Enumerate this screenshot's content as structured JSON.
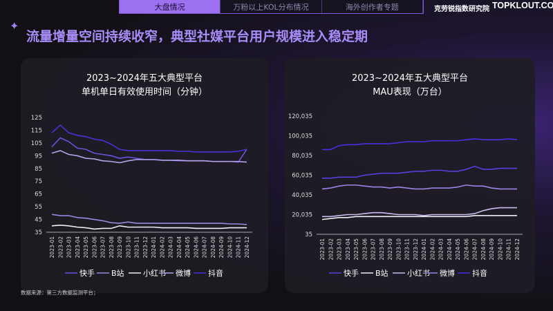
{
  "nav": {
    "tabs": [
      "大盘情况",
      "万粉以上KOL分布情况",
      "海外创作者专题"
    ],
    "active": 0,
    "brand": "克劳锐指数研究院",
    "logo": "TOPKLOUT.COM"
  },
  "title": "流量增量空间持续收窄，典型社媒平台用户规模进入稳定期",
  "footnote": "数据来源：第三方数据监测平台；",
  "chart_data": [
    {
      "type": "line",
      "title": [
        "2023~2024年五大典型平台",
        "单机单日有效使用时间（分钟）"
      ],
      "ylim": [
        35,
        125
      ],
      "yticks": [
        35,
        45,
        55,
        65,
        75,
        85,
        95,
        105,
        115,
        125
      ],
      "categories": [
        "2023-01",
        "2023-02",
        "2023-03",
        "2023-04",
        "2023-05",
        "2023-06",
        "2023-07",
        "2023-08",
        "2023-09",
        "2023-10",
        "2023-11",
        "2023-12",
        "2024-01",
        "2024-02",
        "2024-03",
        "2024-04",
        "2024-05",
        "2024-06",
        "2024-07",
        "2024-08",
        "2024-09",
        "2024-10",
        "2024-11",
        "2024-12"
      ],
      "series": [
        {
          "name": "快手",
          "color": "#6d52e0",
          "values": [
            102,
            109,
            106,
            101,
            100,
            97,
            96,
            95,
            93,
            94,
            93,
            92,
            92,
            91.5,
            91.5,
            91,
            91,
            91,
            91,
            90.5,
            90.5,
            90.5,
            90,
            100
          ]
        },
        {
          "name": "B站",
          "color": "#9a88e0",
          "values": [
            49,
            48,
            48,
            46.5,
            46,
            45,
            44,
            42.5,
            42,
            43,
            42,
            42,
            42,
            42,
            42,
            42,
            42,
            42,
            42,
            42,
            42,
            41.5,
            41.5,
            41
          ]
        },
        {
          "name": "小红书",
          "color": "#f0eef8",
          "values": [
            40,
            40.5,
            40,
            39,
            38.5,
            37.5,
            38,
            38,
            40,
            39,
            39,
            39,
            39,
            38.5,
            38.5,
            38.5,
            38.5,
            38,
            38,
            38,
            38,
            38.5,
            38.5,
            38.5
          ]
        },
        {
          "name": "微博",
          "color": "#b6a4ec",
          "values": [
            97,
            99,
            96,
            95,
            93,
            92.5,
            91,
            90.5,
            89.5,
            91,
            92,
            92,
            92,
            91.5,
            91.5,
            91.5,
            91,
            91,
            91,
            90.5,
            90.5,
            90.5,
            90.5,
            90
          ]
        },
        {
          "name": "抖音",
          "color": "#4d30d8",
          "values": [
            113,
            119,
            113,
            111,
            110,
            108,
            107,
            104,
            100,
            99,
            99,
            99,
            99,
            99,
            99,
            98.5,
            98.5,
            98,
            98,
            98,
            98,
            98,
            98.5,
            100
          ]
        }
      ]
    },
    {
      "type": "line",
      "title": [
        "2023~2024年五大典型平台",
        "MAU表现（万台）"
      ],
      "ylim": [
        35,
        120035
      ],
      "yticks": [
        35,
        20035,
        40035,
        60035,
        80035,
        100035,
        120035
      ],
      "categories": [
        "2023-01",
        "2023-02",
        "2023-03",
        "2023-04",
        "2023-05",
        "2023-06",
        "2023-07",
        "2023-08",
        "2023-09",
        "2023-10",
        "2023-11",
        "2023-12",
        "2024-01",
        "2024-02",
        "2024-03",
        "2024-04",
        "2024-05",
        "2024-06",
        "2024-07",
        "2024-08",
        "2024-09",
        "2024-10",
        "2024-11",
        "2024-12"
      ],
      "series": [
        {
          "name": "快手",
          "color": "#5a3ee0",
          "values": [
            57035,
            57035,
            58035,
            58035,
            58035,
            60035,
            61035,
            62035,
            62035,
            62035,
            63035,
            64035,
            64035,
            65035,
            65035,
            64035,
            64035,
            66035,
            69035,
            66035,
            66035,
            67035,
            67035,
            67035
          ]
        },
        {
          "name": "B站",
          "color": "#f0eef8",
          "values": [
            15035,
            16035,
            17035,
            17035,
            18035,
            18035,
            18035,
            18035,
            18035,
            18035,
            18035,
            18035,
            18035,
            18035,
            18035,
            18035,
            18035,
            18035,
            19035,
            19035,
            19035,
            19035,
            19035,
            19035
          ]
        },
        {
          "name": "小红书",
          "color": "#c8bcef",
          "values": [
            18035,
            18035,
            19035,
            20035,
            20035,
            21035,
            22035,
            22035,
            21035,
            20035,
            20035,
            20035,
            19035,
            20035,
            20035,
            20035,
            20035,
            20035,
            21035,
            24035,
            26035,
            27035,
            27035,
            27035
          ]
        },
        {
          "name": "微博",
          "color": "#9c84e8",
          "values": [
            46035,
            47035,
            49035,
            50035,
            50035,
            49035,
            48035,
            48035,
            47035,
            48035,
            47035,
            46035,
            46035,
            47035,
            47035,
            47035,
            48035,
            50035,
            49035,
            49035,
            47035,
            46035,
            46035,
            46035
          ]
        },
        {
          "name": "抖音",
          "color": "#4a2ee0",
          "values": [
            86035,
            86035,
            90035,
            91035,
            91035,
            92035,
            92035,
            92035,
            92035,
            93035,
            94035,
            94035,
            94035,
            95035,
            95035,
            95035,
            95035,
            96035,
            97035,
            96035,
            96035,
            96035,
            97035,
            96035
          ]
        }
      ]
    }
  ]
}
